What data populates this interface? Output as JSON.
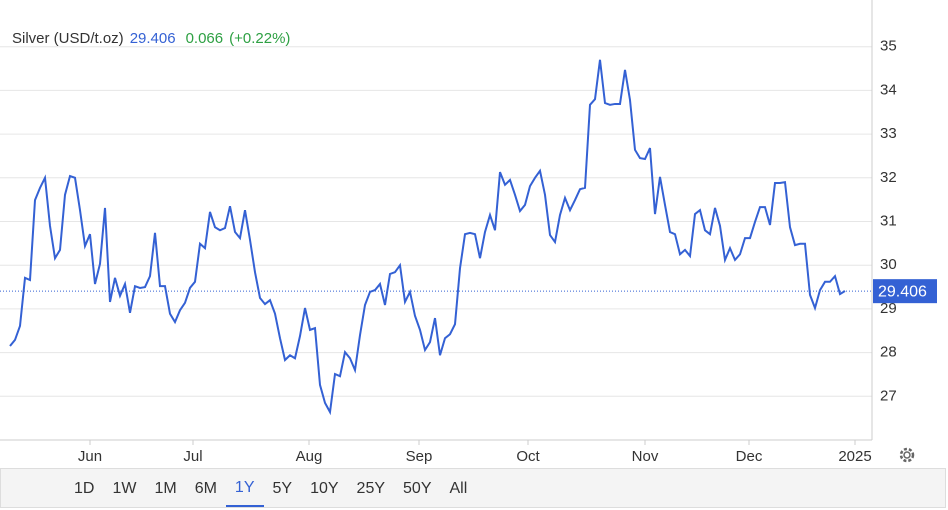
{
  "chart_data": {
    "type": "line",
    "title": "Silver (USD/t.oz)",
    "last_price": 29.406,
    "change": 0.066,
    "change_percent": "(+0.22%)",
    "series": [
      {
        "name": "Silver",
        "color": "#3461d4",
        "values": [
          28.15,
          28.29,
          28.61,
          29.71,
          29.66,
          31.49,
          31.77,
          32.0,
          30.9,
          30.16,
          30.35,
          31.61,
          32.04,
          32.0,
          31.26,
          30.44,
          30.71,
          29.57,
          30.03,
          31.31,
          29.16,
          29.71,
          29.3,
          29.57,
          28.91,
          29.52,
          29.48,
          29.5,
          29.75,
          30.74,
          29.52,
          29.52,
          28.89,
          28.7,
          28.97,
          29.14,
          29.48,
          29.62,
          30.49,
          30.39,
          31.22,
          30.87,
          30.8,
          30.85,
          31.35,
          30.76,
          30.62,
          31.26,
          30.58,
          29.84,
          29.25,
          29.11,
          29.2,
          28.89,
          28.33,
          27.83,
          27.94,
          27.87,
          28.38,
          29.02,
          28.52,
          28.56,
          27.26,
          26.85,
          26.64,
          27.51,
          27.46,
          28.01,
          27.87,
          27.6,
          28.4,
          29.09,
          29.39,
          29.43,
          29.57,
          29.09,
          29.8,
          29.84,
          30.0,
          29.16,
          29.39,
          28.84,
          28.52,
          28.06,
          28.24,
          28.79,
          27.94,
          28.33,
          28.42,
          28.65,
          29.93,
          30.71,
          30.74,
          30.71,
          30.16,
          30.76,
          31.15,
          30.8,
          32.13,
          31.84,
          31.95,
          31.61,
          31.24,
          31.38,
          31.81,
          32.0,
          32.16,
          31.61,
          30.69,
          30.53,
          31.15,
          31.54,
          31.26,
          31.49,
          31.74,
          31.77,
          33.67,
          33.8,
          34.7,
          33.71,
          33.67,
          33.69,
          33.69,
          34.47,
          33.78,
          32.64,
          32.45,
          32.43,
          32.68,
          31.17,
          32.02,
          31.38,
          30.76,
          30.71,
          30.25,
          30.35,
          30.21,
          31.17,
          31.26,
          30.8,
          30.71,
          31.31,
          30.9,
          30.12,
          30.39,
          30.12,
          30.25,
          30.62,
          30.62,
          30.99,
          31.33,
          31.33,
          30.92,
          31.88,
          31.88,
          31.9,
          30.87,
          30.46,
          30.49,
          30.49,
          29.32,
          29.02,
          29.43,
          29.62,
          29.62,
          29.75,
          29.34,
          29.41
        ]
      }
    ],
    "xlim": [
      0,
      172.4
    ],
    "xticks": [
      {
        "value": 16,
        "label": "Jun"
      },
      {
        "value": 36.6,
        "label": "Jul"
      },
      {
        "value": 59.8,
        "label": "Aug"
      },
      {
        "value": 81.8,
        "label": "Sep"
      },
      {
        "value": 103.6,
        "label": "Oct"
      },
      {
        "value": 127,
        "label": "Nov"
      },
      {
        "value": 147.8,
        "label": "Dec"
      },
      {
        "value": 169,
        "label": "2025"
      }
    ],
    "ylim": [
      26,
      36
    ],
    "yticks": [
      27,
      28,
      29,
      30,
      31,
      32,
      33,
      34,
      35
    ],
    "grid": true,
    "ranges": [
      "1D",
      "1W",
      "1M",
      "6M",
      "1Y",
      "5Y",
      "10Y",
      "25Y",
      "50Y",
      "All"
    ],
    "active_range": "1Y"
  }
}
